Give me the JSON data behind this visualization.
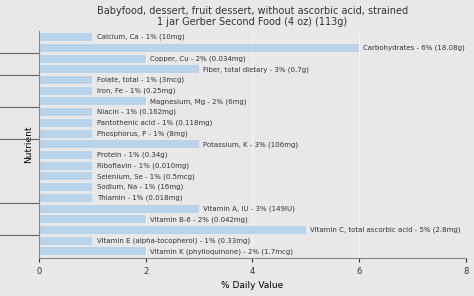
{
  "title": "Babyfood, dessert, fruit dessert, without ascorbic acid, strained\n1 jar Gerber Second Food (4 oz) (113g)",
  "xlabel": "% Daily Value",
  "ylabel": "Nutrient",
  "nutrients": [
    "Calcium, Ca - 1% (10mg)",
    "Carbohydrates - 6% (18.08g)",
    "Copper, Cu - 2% (0.034mg)",
    "Fiber, total dietary - 3% (0.7g)",
    "Folate, total - 1% (3mcg)",
    "Iron, Fe - 1% (0.25mg)",
    "Magnesium, Mg - 2% (6mg)",
    "Niacin - 1% (0.162mg)",
    "Pantothenic acid - 1% (0.118mg)",
    "Phosphorus, P - 1% (8mg)",
    "Potassium, K - 3% (106mg)",
    "Protein - 1% (0.34g)",
    "Riboflavin - 1% (0.010mg)",
    "Selenium, Se - 1% (0.5mcg)",
    "Sodium, Na - 1% (16mg)",
    "Thiamin - 1% (0.018mg)",
    "Vitamin A, IU - 3% (149IU)",
    "Vitamin B-6 - 2% (0.042mg)",
    "Vitamin C, total ascorbic acid - 5% (2.8mg)",
    "Vitamin E (alpha-tocopherol) - 1% (0.33mg)",
    "Vitamin K (phylloquinone) - 2% (1.7mcg)"
  ],
  "values": [
    1,
    6,
    2,
    3,
    1,
    1,
    2,
    1,
    1,
    1,
    3,
    1,
    1,
    1,
    1,
    1,
    3,
    2,
    5,
    1,
    2
  ],
  "bar_color": "#b8d4ea",
  "background_color": "#e8e8e8",
  "plot_bg_color": "#e8e8e8",
  "xlim": [
    0,
    8
  ],
  "xticks": [
    0,
    2,
    4,
    6,
    8
  ],
  "title_fontsize": 7,
  "label_fontsize": 5.0,
  "axis_label_fontsize": 6.5,
  "tick_fontsize": 6,
  "bar_height": 0.75,
  "separator_rows": [
    1.5,
    3.5,
    6.5,
    9.5,
    15.5,
    18.5
  ]
}
